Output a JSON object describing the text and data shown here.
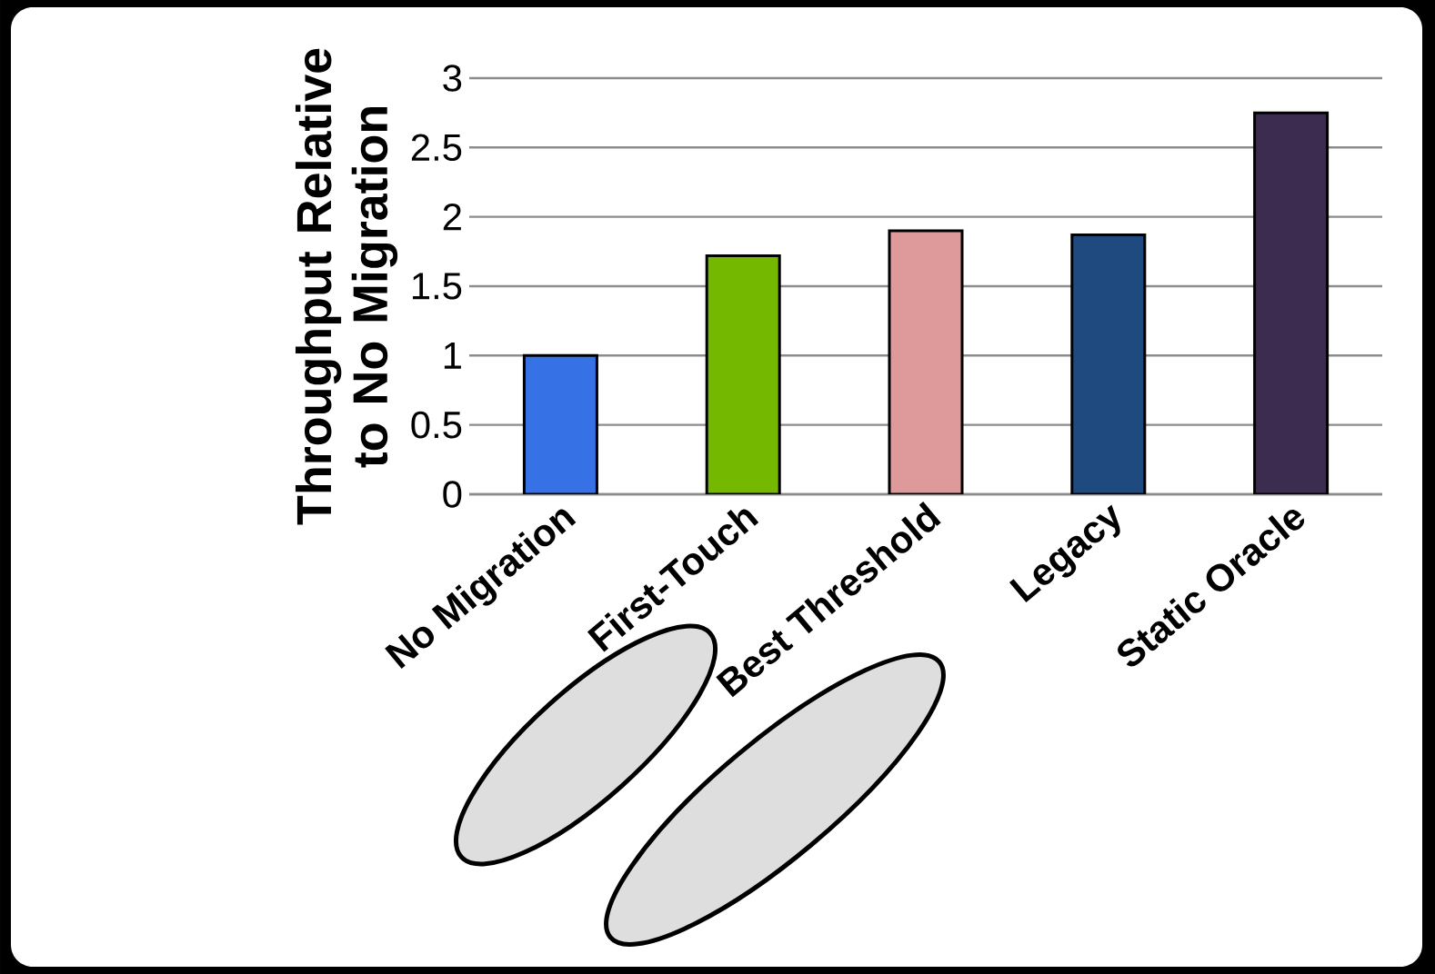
{
  "chart_data": {
    "type": "bar",
    "ylabel": "Throughput Relative to No Migration",
    "categories": [
      "No Migration",
      "First-Touch",
      "Best Threshold",
      "Legacy",
      "Static Oracle"
    ],
    "values": [
      1.0,
      1.72,
      1.9,
      1.87,
      2.75
    ],
    "colors": [
      "#3671e6",
      "#74b800",
      "#de9a9a",
      "#1e4a80",
      "#3c2d50"
    ],
    "ylim": [
      0,
      3
    ],
    "yticks": [
      0,
      0.5,
      1,
      1.5,
      2,
      2.5,
      3
    ],
    "grid": "y"
  }
}
